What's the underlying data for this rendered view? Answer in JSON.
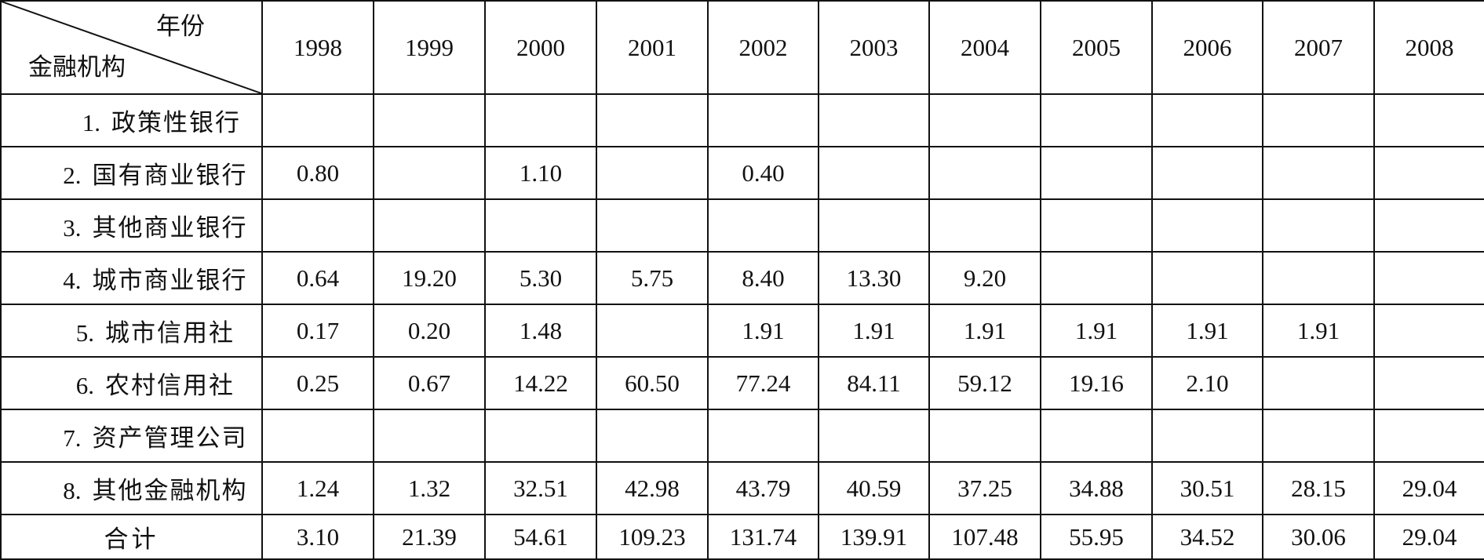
{
  "table": {
    "corner": {
      "top_label": "年份",
      "bottom_label": "金融机构"
    },
    "years": [
      "1998",
      "1999",
      "2000",
      "2001",
      "2002",
      "2003",
      "2004",
      "2005",
      "2006",
      "2007",
      "2008"
    ],
    "rows": [
      {
        "num": "1.",
        "name": "政策性银行",
        "values": [
          "",
          "",
          "",
          "",
          "",
          "",
          "",
          "",
          "",
          "",
          ""
        ]
      },
      {
        "num": "2.",
        "name": "国有商业银行",
        "values": [
          "0.80",
          "",
          "1.10",
          "",
          "0.40",
          "",
          "",
          "",
          "",
          "",
          ""
        ]
      },
      {
        "num": "3.",
        "name": "其他商业银行",
        "values": [
          "",
          "",
          "",
          "",
          "",
          "",
          "",
          "",
          "",
          "",
          ""
        ]
      },
      {
        "num": "4.",
        "name": "城市商业银行",
        "values": [
          "0.64",
          "19.20",
          "5.30",
          "5.75",
          "8.40",
          "13.30",
          "9.20",
          "",
          "",
          "",
          ""
        ]
      },
      {
        "num": "5.",
        "name": "城市信用社",
        "values": [
          "0.17",
          "0.20",
          "1.48",
          "",
          "1.91",
          "1.91",
          "1.91",
          "1.91",
          "1.91",
          "1.91",
          ""
        ]
      },
      {
        "num": "6.",
        "name": "农村信用社",
        "values": [
          "0.25",
          "0.67",
          "14.22",
          "60.50",
          "77.24",
          "84.11",
          "59.12",
          "19.16",
          "2.10",
          "",
          ""
        ]
      },
      {
        "num": "7.",
        "name": "资产管理公司",
        "values": [
          "",
          "",
          "",
          "",
          "",
          "",
          "",
          "",
          "",
          "",
          ""
        ]
      },
      {
        "num": "8.",
        "name": "其他金融机构",
        "values": [
          "1.24",
          "1.32",
          "32.51",
          "42.98",
          "43.79",
          "40.59",
          "37.25",
          "34.88",
          "30.51",
          "28.15",
          "29.04"
        ]
      }
    ],
    "total": {
      "label": "合计",
      "values": [
        "3.10",
        "21.39",
        "54.61",
        "109.23",
        "131.74",
        "139.91",
        "107.48",
        "55.95",
        "34.52",
        "30.06",
        "29.04"
      ]
    }
  }
}
